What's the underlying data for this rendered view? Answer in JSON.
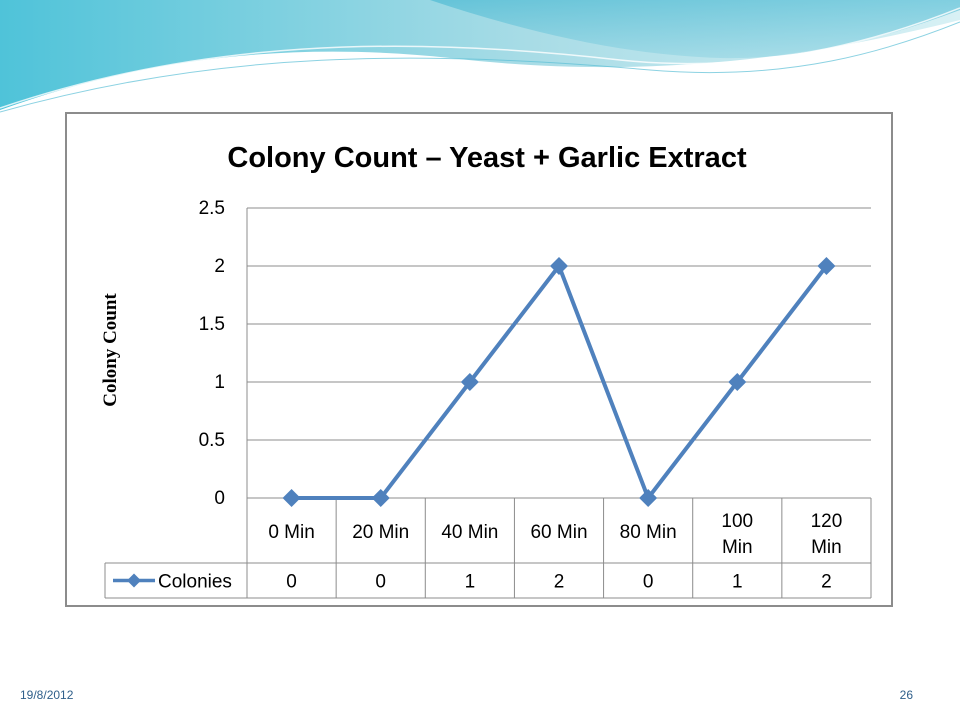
{
  "slide": {
    "date": "19/8/2012",
    "page_number": "26"
  },
  "chart_data": {
    "type": "line",
    "title": "Colony Count – Yeast + Garlic Extract",
    "xlabel": "",
    "ylabel": "Colony Count",
    "categories": [
      "0 Min",
      "20 Min",
      "40 Min",
      "60 Min",
      "80 Min",
      "100 Min",
      "120 Min"
    ],
    "series": [
      {
        "name": "Colonies",
        "values": [
          0,
          0,
          1,
          2,
          0,
          1,
          2
        ],
        "color": "#4f81bd"
      }
    ],
    "ylim": [
      0,
      2.5
    ],
    "yticks": [
      "0",
      "0.5",
      "1",
      "1.5",
      "2",
      "2.5"
    ],
    "grid": true,
    "marker": "diamond",
    "data_table": true
  }
}
